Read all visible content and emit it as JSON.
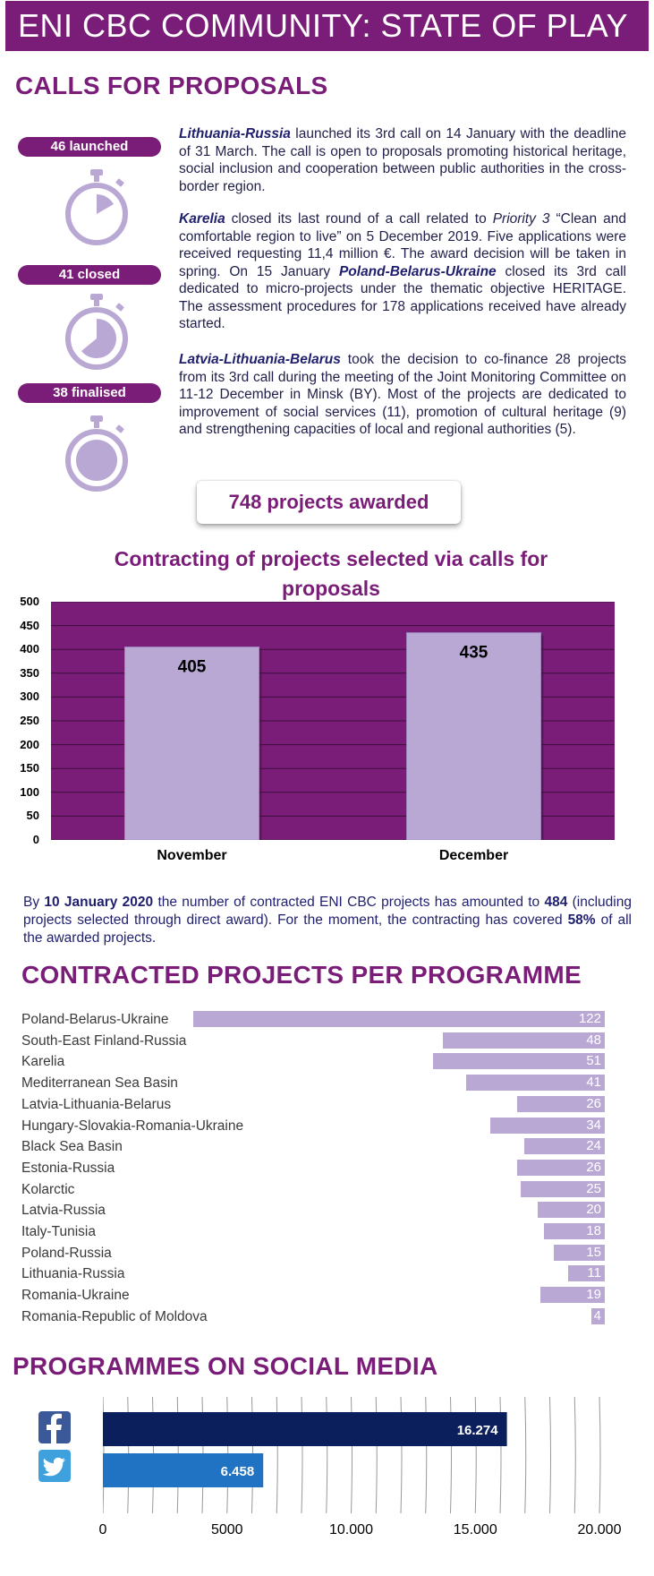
{
  "header": {
    "title": "ENI CBC COMMUNITY: STATE OF PLAY"
  },
  "calls": {
    "heading": "CALLS FOR PROPOSALS",
    "stats": [
      {
        "label": "46 launched",
        "icon": "stopwatch-quarter-icon"
      },
      {
        "label": "41 closed",
        "icon": "stopwatch-half-icon"
      },
      {
        "label": "38 finalised",
        "icon": "stopwatch-full-icon"
      }
    ],
    "paragraphs": [
      {
        "lead": "Lithuania-Russia",
        "text": " launched its 3rd call on 14 January with the deadline of 31 March. The call is open to proposals promoting historical heritage, social inclusion and cooperation between public authorities in the cross-border region."
      },
      {
        "lead": "Karelia",
        "t1": " closed its last round of a call related to ",
        "italic": "Priority 3",
        "t2": " “Clean and comfortable region to live” on 5 December 2019. Five applications were received requesting 11,4 million €. The award decision will be taken in spring. On 15 January ",
        "lead2": "Poland-Belarus-Ukraine",
        "t3": " closed its 3rd call dedicated to micro-projects under the thematic objective HERITAGE. The assessment procedures for 178 applications received have already started."
      },
      {
        "lead": "Latvia-Lithuania-Belarus",
        "text": " took the decision to co-finance 28 projects from its 3rd call during the meeting of the Joint Monitoring Committee on 11-12 December in Minsk (BY). Most of the projects are dedicated to improvement of social services (11), promotion of cultural heritage (9) and strengthening capacities of local and regional authorities (5)."
      }
    ],
    "awarded": "748 projects awarded"
  },
  "chart_data": {
    "type": "bar",
    "title": "Contracting of projects selected via calls for proposals",
    "categories": [
      "November",
      "December"
    ],
    "values": [
      405,
      435
    ],
    "ylim": [
      0,
      500
    ],
    "yticks": [
      0,
      50,
      100,
      150,
      200,
      250,
      300,
      350,
      400,
      450,
      500
    ],
    "colors": {
      "background": "#7a1d78",
      "bar": "#b9a8d4"
    }
  },
  "contracting": {
    "t1": "By ",
    "date": "10 January 2020",
    "t2": " the number of contracted ENI CBC projects has amounted to ",
    "count": "484",
    "t3": " (including projects selected through direct award). For the moment, the contracting has covered ",
    "pct": "58%",
    "t4": " of all the awarded projects."
  },
  "programmes": {
    "heading": "CONTRACTED PROJECTS PER PROGRAMME",
    "max": 122,
    "items": [
      {
        "name": "Poland-Belarus-Ukraine",
        "value": 122
      },
      {
        "name": "South-East Finland-Russia",
        "value": 48
      },
      {
        "name": "Karelia",
        "value": 51
      },
      {
        "name": "Mediterranean Sea Basin",
        "value": 41
      },
      {
        "name": "Latvia-Lithuania-Belarus",
        "value": 26
      },
      {
        "name": "Hungary-Slovakia-Romania-Ukraine",
        "value": 34
      },
      {
        "name": "Black Sea Basin",
        "value": 24
      },
      {
        "name": "Estonia-Russia",
        "value": 26
      },
      {
        "name": "Kolarctic",
        "value": 25
      },
      {
        "name": "Latvia-Russia",
        "value": 20
      },
      {
        "name": "Italy-Tunisia",
        "value": 18
      },
      {
        "name": "Poland-Russia",
        "value": 15
      },
      {
        "name": "Lithuania-Russia",
        "value": 11
      },
      {
        "name": "Romania-Ukraine",
        "value": 19
      },
      {
        "name": "Romania-Republic of Moldova",
        "value": 4
      }
    ]
  },
  "social": {
    "heading": "PROGRAMMES ON SOCIAL MEDIA",
    "max": 20000,
    "ticks": [
      "0",
      "5000",
      "10.000",
      "15.000",
      "20.000"
    ],
    "items": [
      {
        "platform": "facebook",
        "icon": "facebook-icon",
        "value": 16274,
        "label": "16.274",
        "color": "#0b1f5c"
      },
      {
        "platform": "twitter",
        "icon": "twitter-icon",
        "value": 6458,
        "label": "6.458",
        "color": "#1f73c2"
      }
    ]
  }
}
